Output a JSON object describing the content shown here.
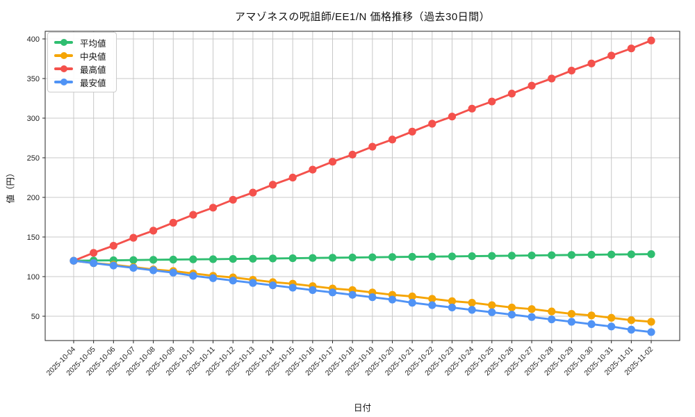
{
  "chart_data": {
    "type": "line",
    "title": "アマゾネスの呪詛師/EE1/N 価格推移（過去30日間）",
    "xlabel": "日付",
    "ylabel": "値（円）",
    "grid": true,
    "legend_position": "upper-left",
    "xtick_rotation": 45,
    "yticks": [
      50,
      100,
      150,
      200,
      250,
      300,
      350,
      400
    ],
    "ylim": [
      19,
      410
    ],
    "categories": [
      "2025-10-04",
      "2025-10-05",
      "2025-10-06",
      "2025-10-07",
      "2025-10-08",
      "2025-10-09",
      "2025-10-10",
      "2025-10-11",
      "2025-10-12",
      "2025-10-13",
      "2025-10-14",
      "2025-10-15",
      "2025-10-16",
      "2025-10-17",
      "2025-10-18",
      "2025-10-19",
      "2025-10-20",
      "2025-10-21",
      "2025-10-22",
      "2025-10-23",
      "2025-10-24",
      "2025-10-25",
      "2025-10-26",
      "2025-10-27",
      "2025-10-28",
      "2025-10-29",
      "2025-10-30",
      "2025-10-31",
      "2025-11-01",
      "2025-11-02"
    ],
    "series": [
      {
        "name": "平均値",
        "color": "#2fbe70",
        "values": [
          120.0,
          120.3,
          120.6,
          120.9,
          121.2,
          121.5,
          121.8,
          122.0,
          122.3,
          122.6,
          122.9,
          123.2,
          123.5,
          123.8,
          124.1,
          124.4,
          124.7,
          125.0,
          125.2,
          125.5,
          125.8,
          126.1,
          126.4,
          126.7,
          127.0,
          127.3,
          127.6,
          127.9,
          128.1,
          128.4
        ]
      },
      {
        "name": "中央値",
        "color": "#f5a505",
        "values": [
          120,
          117,
          115,
          112,
          109,
          107,
          104,
          101,
          99,
          96,
          93,
          91,
          88,
          85,
          83,
          80,
          77,
          75,
          72,
          69,
          67,
          64,
          61,
          59,
          56,
          53,
          51,
          48,
          45,
          43
        ]
      },
      {
        "name": "最高値",
        "color": "#f4514c",
        "values": [
          120,
          130,
          139,
          149,
          158,
          168,
          178,
          187,
          197,
          206,
          216,
          225,
          235,
          245,
          254,
          264,
          273,
          283,
          293,
          302,
          312,
          321,
          331,
          341,
          350,
          360,
          369,
          379,
          388,
          398
        ]
      },
      {
        "name": "最安値",
        "color": "#5093f5",
        "values": [
          120,
          117,
          114,
          111,
          108,
          105,
          101,
          98,
          95,
          92,
          89,
          86,
          83,
          80,
          77,
          74,
          71,
          67,
          64,
          61,
          58,
          55,
          52,
          49,
          46,
          43,
          40,
          37,
          33,
          30
        ]
      }
    ],
    "style": {
      "grid_color": "#c8c8c8",
      "spine_color": "#262626",
      "tick_label_color": "#1f1f1f",
      "background": "#ffffff"
    }
  }
}
